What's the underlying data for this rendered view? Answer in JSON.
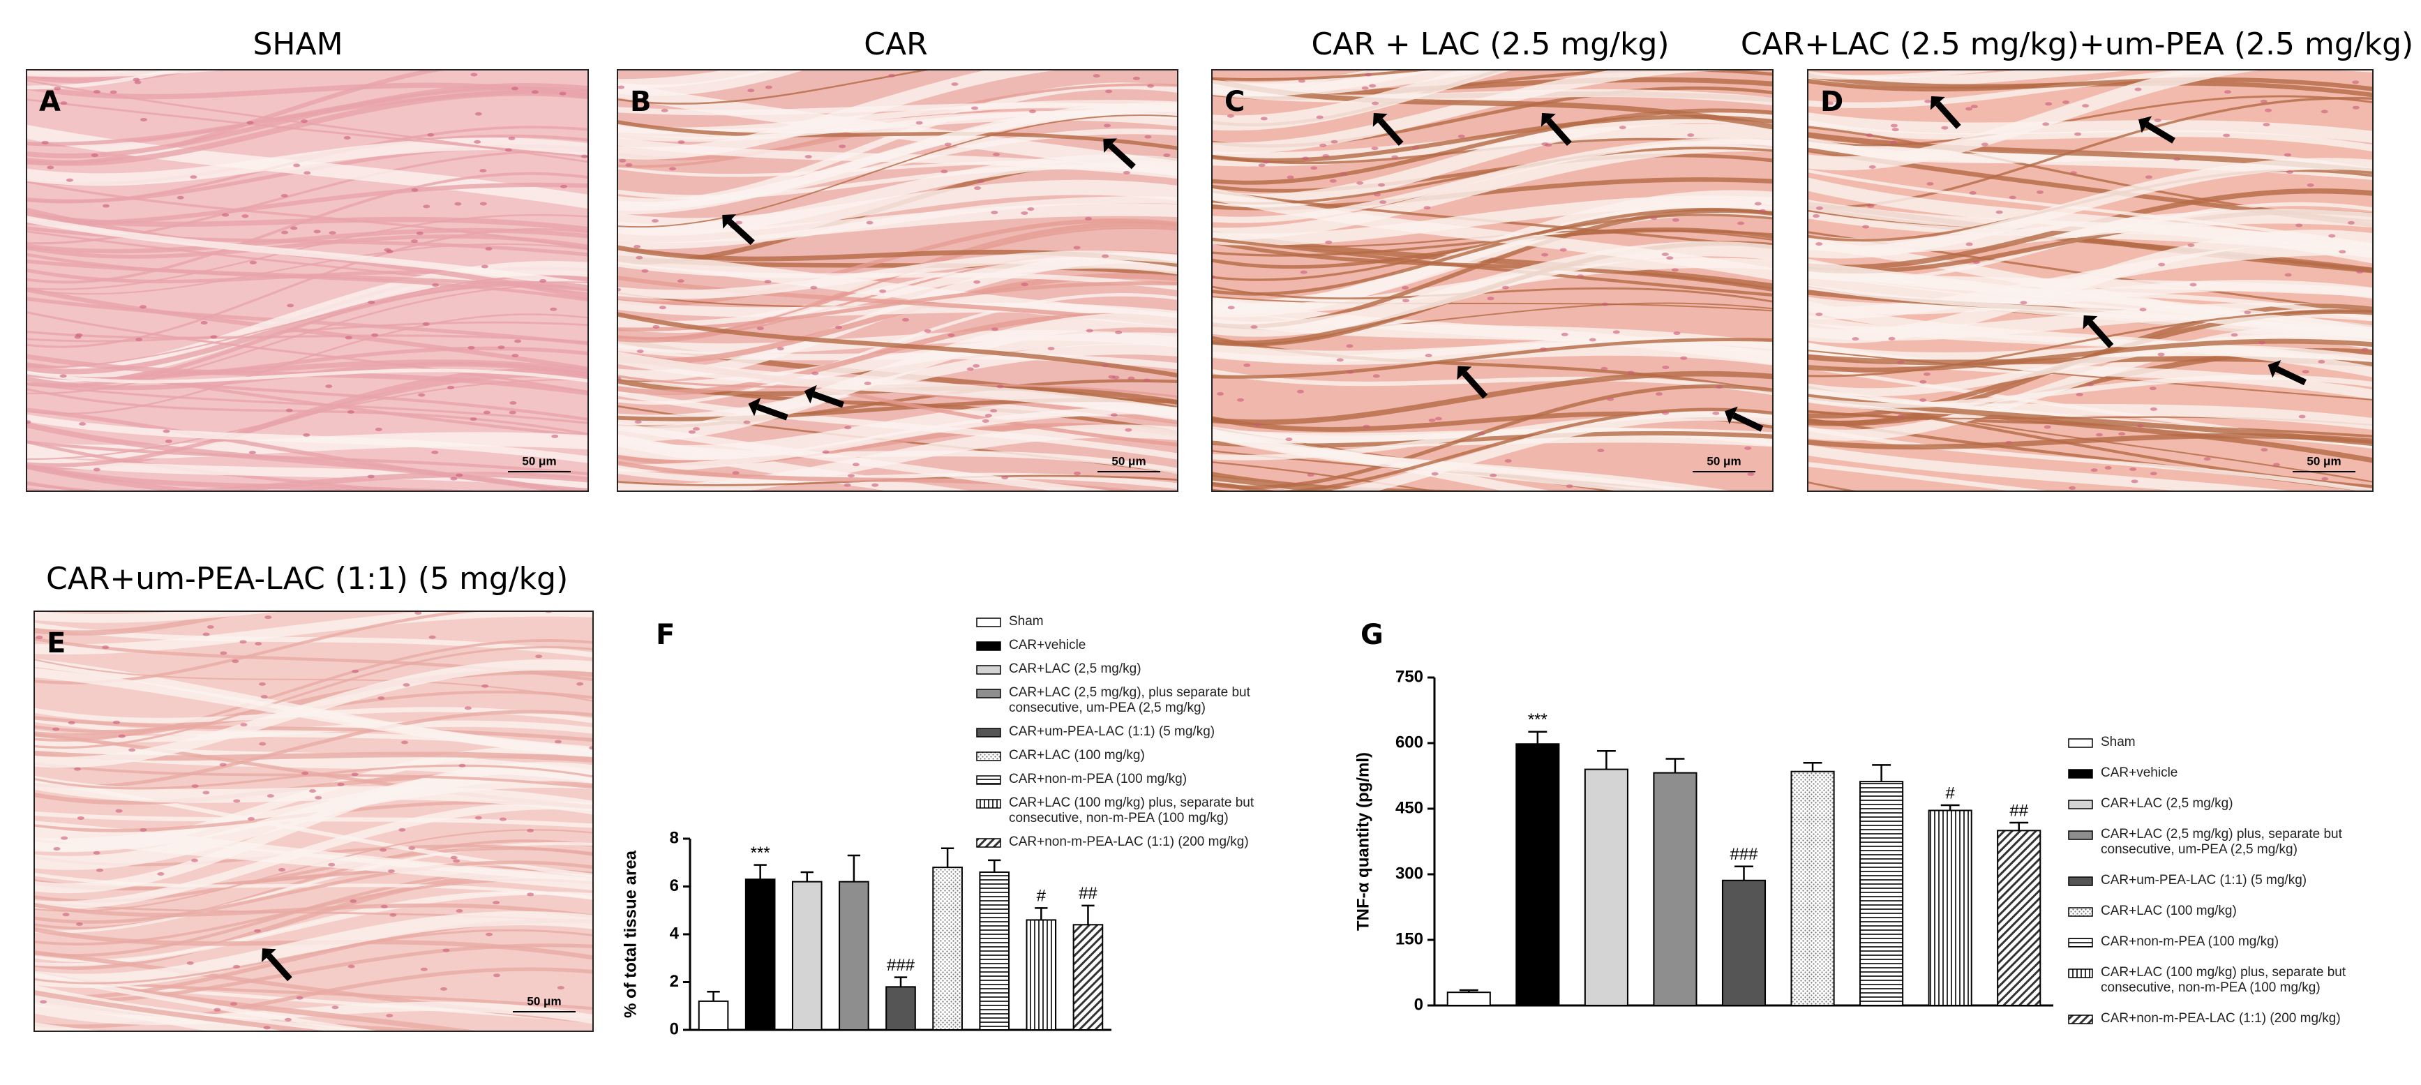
{
  "panels": [
    {
      "title": "SHAM",
      "letter": "A",
      "scale_bar": "50 μm"
    },
    {
      "title": "CAR",
      "letter": "B",
      "scale_bar": "50 μm"
    },
    {
      "title": "CAR + LAC (2.5 mg/kg)",
      "letter": "C",
      "scale_bar": "50 μm"
    },
    {
      "title": "CAR+LAC (2.5 mg/kg)+um-PEA (2.5 mg/kg)",
      "letter": "D",
      "scale_bar": "50 μm"
    },
    {
      "title": "CAR+um-PEA-LAC (1:1) (5 mg/kg)",
      "letter": "E",
      "scale_bar": "50 μm"
    }
  ],
  "chart_data": [
    {
      "type": "bar",
      "letter": "F",
      "y_label": "% of total tissue area",
      "legend": "top",
      "categories": [
        "Sham",
        "CAR+vehicle",
        "CAR+LAC (2,5 mg/kg)",
        "CAR+LAC (2,5 mg/kg), plus separate but consecutive, um-PEA (2,5 mg/kg)",
        "CAR+um-PEA-LAC (1:1) (5 mg/kg)",
        "CAR+LAC (100 mg/kg)",
        "CAR+non-m-PEA (100 mg/kg)",
        "CAR+LAC (100 mg/kg) plus, separate but consecutive, non-m-PEA (100 mg/kg)",
        "CAR+non-m-PEA-LAC (1:1) (200 mg/kg)"
      ],
      "values": [
        1.2,
        6.3,
        6.2,
        6.2,
        1.8,
        6.8,
        6.6,
        4.6,
        4.4
      ],
      "errors": [
        0.4,
        0.6,
        0.4,
        1.1,
        0.4,
        0.8,
        0.5,
        0.5,
        0.8
      ],
      "annotations": [
        null,
        "***",
        null,
        null,
        "###",
        null,
        null,
        "#",
        "##"
      ],
      "colors": [
        "#ffffff",
        "#000000",
        "#d4d4d4",
        "#8e8e8e",
        "#555555",
        "#bdbdbd",
        "#333333",
        "#333333",
        "#333333"
      ],
      "patterns": [
        "solid",
        "solid",
        "solid",
        "solid",
        "solid",
        "dots",
        "hlines",
        "vlines",
        "diag"
      ],
      "ylim": [
        0,
        8
      ],
      "yticks": [
        0,
        2,
        4,
        6,
        8
      ]
    },
    {
      "type": "bar",
      "letter": "G",
      "y_label": "TNF-α quantity (pg/ml)",
      "legend": "right",
      "categories": [
        "Sham",
        "CAR+vehicle",
        "CAR+LAC (2,5 mg/kg)",
        "CAR+LAC (2,5 mg/kg) plus, separate but consecutive, um-PEA (2,5 mg/kg)",
        "CAR+um-PEA-LAC (1:1) (5 mg/kg)",
        "CAR+LAC (100 mg/kg)",
        "CAR+non-m-PEA (100 mg/kg)",
        "CAR+LAC (100 mg/kg) plus, separate but consecutive, non-m-PEA (100 mg/kg)",
        "CAR+non-m-PEA-LAC (1:1) (200 mg/kg)"
      ],
      "values": [
        30,
        598,
        540,
        532,
        286,
        535,
        512,
        446,
        400
      ],
      "errors": [
        5,
        28,
        42,
        32,
        32,
        20,
        38,
        12,
        18
      ],
      "annotations": [
        null,
        "***",
        null,
        null,
        "###",
        null,
        null,
        "#",
        "##"
      ],
      "colors": [
        "#ffffff",
        "#000000",
        "#d4d4d4",
        "#8e8e8e",
        "#555555",
        "#bdbdbd",
        "#333333",
        "#333333",
        "#333333"
      ],
      "patterns": [
        "solid",
        "solid",
        "solid",
        "solid",
        "solid",
        "dots",
        "hlines",
        "vlines",
        "diag"
      ],
      "ylim": [
        0,
        750
      ],
      "yticks": [
        0,
        150,
        300,
        450,
        600,
        750
      ]
    }
  ]
}
